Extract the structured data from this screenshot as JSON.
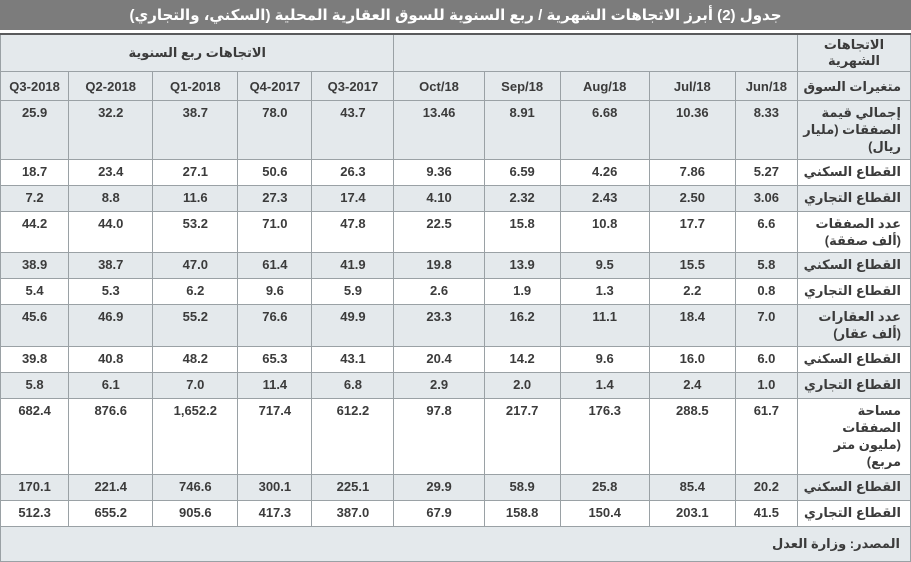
{
  "title": "جدول (2) أبرز الاتجاهات الشهرية / ربع السنوية للسوق العقارية المحلية (السكني، والتجاري)",
  "header": {
    "monthly_group": "الاتجاهات الشهرية",
    "quarterly_group": "الاتجاهات ربع السنوية",
    "variables_col": "متغيرات السوق",
    "month_cols": [
      "Jun/18",
      "Jul/18",
      "Aug/18",
      "Sep/18",
      "Oct/18"
    ],
    "quarter_cols": [
      "2017-Q3",
      "2017-Q4",
      "2018-Q1",
      "2018-Q2",
      "2018-Q3"
    ]
  },
  "rows": [
    {
      "label": "إجمالي قيمة الصفقات (مليار ريال)",
      "monthly": [
        "8.33",
        "10.36",
        "6.68",
        "8.91",
        "13.46"
      ],
      "quarterly": [
        "43.7",
        "78.0",
        "38.7",
        "32.2",
        "25.9"
      ]
    },
    {
      "label": "القطاع السكني",
      "monthly": [
        "5.27",
        "7.86",
        "4.26",
        "6.59",
        "9.36"
      ],
      "quarterly": [
        "26.3",
        "50.6",
        "27.1",
        "23.4",
        "18.7"
      ]
    },
    {
      "label": "القطاع التجاري",
      "monthly": [
        "3.06",
        "2.50",
        "2.43",
        "2.32",
        "4.10"
      ],
      "quarterly": [
        "17.4",
        "27.3",
        "11.6",
        "8.8",
        "7.2"
      ]
    },
    {
      "label": "عدد الصفقات (ألف صفقة)",
      "monthly": [
        "6.6",
        "17.7",
        "10.8",
        "15.8",
        "22.5"
      ],
      "quarterly": [
        "47.8",
        "71.0",
        "53.2",
        "44.0",
        "44.2"
      ]
    },
    {
      "label": "القطاع السكني",
      "monthly": [
        "5.8",
        "15.5",
        "9.5",
        "13.9",
        "19.8"
      ],
      "quarterly": [
        "41.9",
        "61.4",
        "47.0",
        "38.7",
        "38.9"
      ]
    },
    {
      "label": "القطاع التجاري",
      "monthly": [
        "0.8",
        "2.2",
        "1.3",
        "1.9",
        "2.6"
      ],
      "quarterly": [
        "5.9",
        "9.6",
        "6.2",
        "5.3",
        "5.4"
      ]
    },
    {
      "label": "عدد العقارات (ألف عقار)",
      "monthly": [
        "7.0",
        "18.4",
        "11.1",
        "16.2",
        "23.3"
      ],
      "quarterly": [
        "49.9",
        "76.6",
        "55.2",
        "46.9",
        "45.6"
      ]
    },
    {
      "label": "القطاع السكني",
      "monthly": [
        "6.0",
        "16.0",
        "9.6",
        "14.2",
        "20.4"
      ],
      "quarterly": [
        "43.1",
        "65.3",
        "48.2",
        "40.8",
        "39.8"
      ]
    },
    {
      "label": "القطاع التجاري",
      "monthly": [
        "1.0",
        "2.4",
        "1.4",
        "2.0",
        "2.9"
      ],
      "quarterly": [
        "6.8",
        "11.4",
        "7.0",
        "6.1",
        "5.8"
      ]
    },
    {
      "label": "مساحة الصفقات (مليون متر مربع)",
      "monthly": [
        "61.7",
        "288.5",
        "176.3",
        "217.7",
        "97.8"
      ],
      "quarterly": [
        "612.2",
        "717.4",
        "1,652.2",
        "876.6",
        "682.4"
      ]
    },
    {
      "label": "القطاع السكني",
      "monthly": [
        "20.2",
        "85.4",
        "25.8",
        "58.9",
        "29.9"
      ],
      "quarterly": [
        "225.1",
        "300.1",
        "746.6",
        "221.4",
        "170.1"
      ]
    },
    {
      "label": "القطاع التجاري",
      "monthly": [
        "41.5",
        "203.1",
        "150.4",
        "158.8",
        "67.9"
      ],
      "quarterly": [
        "387.0",
        "417.3",
        "905.6",
        "655.2",
        "512.3"
      ]
    }
  ],
  "source": "المصدر: وزارة العدل"
}
